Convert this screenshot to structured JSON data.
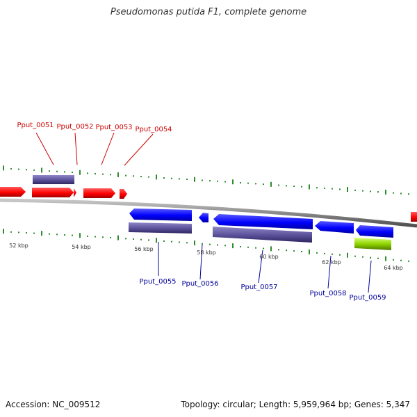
{
  "header": {
    "title": "Pseudomonas putida F1, complete genome"
  },
  "footer": {
    "accession": "Accession: NC_009512",
    "summary": "Topology: circular; Length: 5,959,964 bp; Genes: 5,347"
  },
  "colors": {
    "forward_gene": "#ff0000",
    "reverse_gene": "#0000ff",
    "forward_label": "#cc0000",
    "reverse_label": "#000099",
    "cds_bar": "#5a5099",
    "rna_bar": "#8fd400",
    "tick": "#2e8b2e",
    "backbone": "#8a8a8a"
  },
  "ruler": {
    "labels": [
      "52 kbp",
      "54 kbp",
      "56 kbp",
      "58 kbp",
      "60 kbp",
      "62 kbp",
      "64 kbp"
    ]
  },
  "genes": {
    "forward": [
      {
        "label": "Pput_0051"
      },
      {
        "label": "Pput_0052"
      },
      {
        "label": "Pput_0053"
      },
      {
        "label": "Pput_0054"
      }
    ],
    "reverse": [
      {
        "label": "Pput_0055"
      },
      {
        "label": "Pput_0056"
      },
      {
        "label": "Pput_0057"
      },
      {
        "label": "Pput_0058"
      },
      {
        "label": "Pput_0059"
      }
    ]
  }
}
